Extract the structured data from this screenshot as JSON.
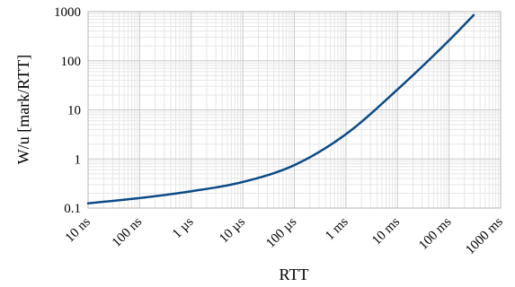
{
  "chart_data": {
    "type": "line",
    "title": "",
    "xlabel": "RTT",
    "ylabel": "W/u [mark/RTT]",
    "x_scale": "log",
    "y_scale": "log",
    "xlim": [
      "10 ns",
      "1000 ms"
    ],
    "ylim": [
      0.1,
      1000
    ],
    "x_ticks": [
      "10 ns",
      "100 ns",
      "1 µs",
      "10 µs",
      "100 µs",
      "1 ms",
      "10 ms",
      "100 ms",
      "1000 ms"
    ],
    "y_ticks": [
      "0.1",
      "1",
      "10",
      "100",
      "1000"
    ],
    "grid": true,
    "legend": "none",
    "colors": {
      "line": "#0b4a86",
      "grid_major": "#c8c8c8",
      "grid_minor": "#e6e6e6"
    },
    "series": [
      {
        "x": [
          "10 ns",
          "100 ns",
          "1 µs",
          "10 µs",
          "100 µs",
          "1 ms",
          "10 ms",
          "100 ms",
          "300 ms"
        ],
        "values": [
          0.125,
          0.16,
          0.22,
          0.34,
          0.75,
          3.2,
          26,
          260,
          850
        ]
      }
    ]
  }
}
